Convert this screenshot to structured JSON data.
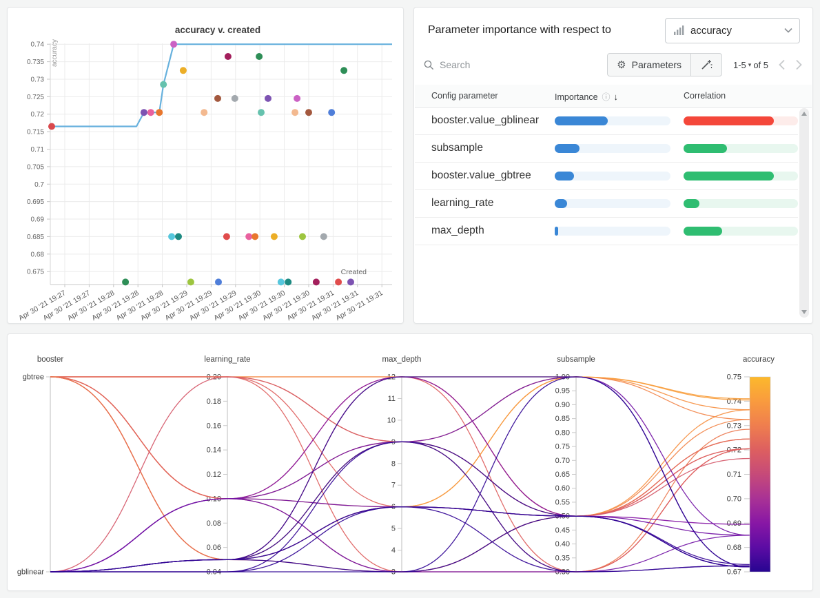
{
  "page": {
    "background": "#f4f5f5"
  },
  "importance_panel": {
    "title": "Parameter importance with respect to",
    "metric": "accuracy",
    "search_placeholder": "Search",
    "parameters_label": "Parameters",
    "pagination": {
      "range": "1-5",
      "caret": "▾",
      "of": "of 5"
    },
    "icons": {
      "gear": "⚙",
      "info": "ⓘ",
      "sort_desc": "↓"
    },
    "table": {
      "columns": [
        "Config parameter",
        "Importance",
        "Correlation"
      ],
      "rows": [
        {
          "name": "booster.value_gblinear",
          "importance": 0.46,
          "correlation": -0.79
        },
        {
          "name": "subsample",
          "importance": 0.215,
          "correlation": 0.38
        },
        {
          "name": "booster.value_gbtree",
          "importance": 0.165,
          "correlation": 0.79
        },
        {
          "name": "learning_rate",
          "importance": 0.11,
          "correlation": 0.14
        },
        {
          "name": "max_depth",
          "importance": 0.028,
          "correlation": 0.34
        }
      ]
    },
    "colors": {
      "importance_fill": "#3a87d6",
      "importance_track": "#eef5fb",
      "positive_fill": "#2fbd71",
      "positive_track": "#e8f7ef",
      "negative_fill": "#f4473a",
      "negative_track": "#fdecea"
    }
  },
  "chart_data": [
    {
      "type": "scatter",
      "title": "accuracy v. created",
      "xlabel": "Created",
      "ylabel": "accuracy",
      "x_axis_note": "time of run creation, Apr 30 2021, ticks every 20 s",
      "x_tick_labels": [
        "Apr 30 '21 19:27",
        "Apr 30 '21 19:27",
        "Apr 30 '21 19:28",
        "Apr 30 '21 19:28",
        "Apr 30 '21 19:28",
        "Apr 30 '21 19:29",
        "Apr 30 '21 19:29",
        "Apr 30 '21 19:29",
        "Apr 30 '21 19:30",
        "Apr 30 '21 19:30",
        "Apr 30 '21 19:30",
        "Apr 30 '21 19:31",
        "Apr 30 '21 19:31",
        "Apr 30 '21 19:31"
      ],
      "y_ticks": [
        0.675,
        0.68,
        0.685,
        0.69,
        0.695,
        0.7,
        0.705,
        0.71,
        0.715,
        0.72,
        0.725,
        0.73,
        0.735,
        0.74
      ],
      "line_color": "#67b1dd",
      "max_line": [
        [
          0.004,
          0.7165
        ],
        [
          0.252,
          0.7165
        ],
        [
          0.274,
          0.7205
        ],
        [
          0.319,
          0.7205
        ],
        [
          0.331,
          0.7285
        ],
        [
          0.361,
          0.74
        ],
        [
          1.0,
          0.74
        ]
      ],
      "points": [
        [
          0.004,
          0.7165,
          "#d9494d"
        ],
        [
          0.22,
          0.672,
          "#2e8e57"
        ],
        [
          0.274,
          0.7205,
          "#7d53b2"
        ],
        [
          0.294,
          0.7205,
          "#e9619f"
        ],
        [
          0.319,
          0.7205,
          "#e8762d"
        ],
        [
          0.331,
          0.7285,
          "#66c2ae"
        ],
        [
          0.355,
          0.685,
          "#56c7dd"
        ],
        [
          0.361,
          0.74,
          "#cb61c4"
        ],
        [
          0.375,
          0.685,
          "#1d8a82"
        ],
        [
          0.389,
          0.7325,
          "#ecae27"
        ],
        [
          0.411,
          0.672,
          "#9dc53f"
        ],
        [
          0.45,
          0.7205,
          "#f3b990"
        ],
        [
          0.49,
          0.7245,
          "#a3583e"
        ],
        [
          0.492,
          0.672,
          "#4f7ed9"
        ],
        [
          0.516,
          0.685,
          "#e04c4c"
        ],
        [
          0.52,
          0.7365,
          "#a31f5c"
        ],
        [
          0.54,
          0.7245,
          "#a3a9ae"
        ],
        [
          0.581,
          0.685,
          "#e9619f"
        ],
        [
          0.599,
          0.685,
          "#e8762d"
        ],
        [
          0.611,
          0.7365,
          "#2e8e57"
        ],
        [
          0.617,
          0.7205,
          "#66c2ae"
        ],
        [
          0.637,
          0.7245,
          "#7d53b2"
        ],
        [
          0.655,
          0.685,
          "#ecae27"
        ],
        [
          0.675,
          0.672,
          "#56c7dd"
        ],
        [
          0.696,
          0.672,
          "#1d8a82"
        ],
        [
          0.716,
          0.7205,
          "#f3b990"
        ],
        [
          0.722,
          0.7245,
          "#cb61c4"
        ],
        [
          0.738,
          0.685,
          "#9dc53f"
        ],
        [
          0.756,
          0.7205,
          "#a3583e"
        ],
        [
          0.778,
          0.672,
          "#a31f5c"
        ],
        [
          0.8,
          0.685,
          "#a3a9ae"
        ],
        [
          0.823,
          0.7205,
          "#4f7ed9"
        ],
        [
          0.843,
          0.672,
          "#e04c4c"
        ],
        [
          0.859,
          0.7325,
          "#2e8e57"
        ],
        [
          0.879,
          0.672,
          "#7d53b2"
        ]
      ]
    },
    {
      "type": "parallel_coordinates",
      "axes": [
        {
          "name": "booster",
          "kind": "categorical",
          "categories": [
            "gbtree",
            "gblinear"
          ]
        },
        {
          "name": "learning_rate",
          "kind": "numeric",
          "min": 0.04,
          "max": 0.2,
          "tick_step": 0.02,
          "decimals": 2
        },
        {
          "name": "max_depth",
          "kind": "numeric",
          "min": 3,
          "max": 12,
          "tick_step": 1,
          "decimals": 0
        },
        {
          "name": "subsample",
          "kind": "numeric",
          "min": 0.3,
          "max": 1.0,
          "tick_step": 0.05,
          "decimals": 2
        },
        {
          "name": "accuracy",
          "kind": "colorbar",
          "min": 0.67,
          "max": 0.75,
          "tick_step": 0.01,
          "decimals": 2
        }
      ],
      "colorbar": {
        "stops": [
          [
            0.75,
            "#fcb92c"
          ],
          [
            0.74,
            "#f99b3e"
          ],
          [
            0.73,
            "#ef7e4e"
          ],
          [
            0.72,
            "#dd5f60"
          ],
          [
            0.71,
            "#c64a79"
          ],
          [
            0.7,
            "#a93295"
          ],
          [
            0.69,
            "#8817a5"
          ],
          [
            0.68,
            "#5c0ca4"
          ],
          [
            0.67,
            "#270591"
          ]
        ]
      },
      "runs": [
        [
          "gbtree",
          0.2,
          12,
          1.0,
          0.741
        ],
        [
          "gbtree",
          0.2,
          12,
          0.5,
          0.7325
        ],
        [
          "gbtree",
          0.2,
          9,
          1.0,
          0.7365
        ],
        [
          "gbtree",
          0.2,
          6,
          0.5,
          0.7205
        ],
        [
          "gbtree",
          0.2,
          3,
          0.3,
          0.7205
        ],
        [
          "gbtree",
          0.1,
          12,
          0.5,
          0.7245
        ],
        [
          "gbtree",
          0.1,
          9,
          0.3,
          0.7285
        ],
        [
          "gbtree",
          0.1,
          6,
          1.0,
          0.7325
        ],
        [
          "gbtree",
          0.1,
          3,
          0.5,
          0.7205
        ],
        [
          "gbtree",
          0.05,
          12,
          0.3,
          0.7205
        ],
        [
          "gbtree",
          0.05,
          9,
          0.5,
          0.7365
        ],
        [
          "gbtree",
          0.05,
          6,
          1.0,
          0.7405
        ],
        [
          "gbtree",
          0.05,
          3,
          0.5,
          0.7245
        ],
        [
          "gblinear",
          0.2,
          9,
          0.5,
          0.7165
        ],
        [
          "gblinear",
          0.1,
          12,
          0.5,
          0.6895
        ],
        [
          "gblinear",
          0.1,
          9,
          1.0,
          0.685
        ],
        [
          "gblinear",
          0.1,
          6,
          0.5,
          0.685
        ],
        [
          "gblinear",
          0.1,
          3,
          0.3,
          0.685
        ],
        [
          "gblinear",
          0.05,
          12,
          1.0,
          0.672
        ],
        [
          "gblinear",
          0.05,
          9,
          0.5,
          0.672
        ],
        [
          "gblinear",
          0.05,
          6,
          0.3,
          0.6725
        ],
        [
          "gblinear",
          0.05,
          6,
          0.5,
          0.673
        ],
        [
          "gblinear",
          0.05,
          3,
          1.0,
          0.672
        ],
        [
          "gblinear",
          0.04,
          6,
          0.5,
          0.672
        ],
        [
          "gblinear",
          0.04,
          9,
          0.3,
          0.6725
        ],
        [
          "gblinear",
          0.04,
          3,
          0.5,
          0.672
        ]
      ]
    }
  ]
}
